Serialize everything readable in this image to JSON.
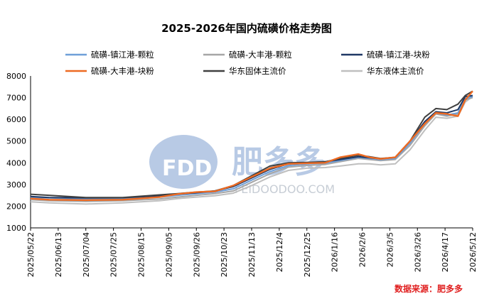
{
  "chart_data": {
    "type": "line",
    "title": "2025-2026年国内硫磺价格走势图",
    "xlabel": "",
    "ylabel": "",
    "ylim": [
      1000,
      8000
    ],
    "yticks": [
      1000,
      2000,
      3000,
      4000,
      5000,
      6000,
      7000,
      8000
    ],
    "x_tick_labels": [
      "2025/05/22",
      "2025/06/13",
      "2025/07/04",
      "2025/07/25",
      "2025/08/15",
      "2025/09/05",
      "2025/09/26",
      "2025/10/23",
      "2025/11/13",
      "2025/12/4",
      "2025/12/25",
      "2026/1/16",
      "2026/2/6",
      "2026/3/5",
      "2026/3/26",
      "2026/4/17",
      "2026/5/12"
    ],
    "x_index_range": [
      0,
      240
    ],
    "legend_position": "top",
    "grid": false,
    "series": [
      {
        "name": "硫磺-镇江港-颗粒",
        "color": "#6f9fd8",
        "x": [
          0,
          10,
          30,
          50,
          70,
          80,
          90,
          100,
          110,
          120,
          130,
          140,
          150,
          160,
          168,
          178,
          184,
          190,
          198,
          206,
          214,
          220,
          226,
          232,
          236,
          240
        ],
        "y": [
          2400,
          2380,
          2330,
          2350,
          2420,
          2500,
          2580,
          2650,
          2800,
          3200,
          3600,
          3870,
          3950,
          3980,
          4100,
          4250,
          4200,
          4150,
          4200,
          4900,
          5800,
          6300,
          6200,
          6300,
          6950,
          7050
        ]
      },
      {
        "name": "硫磺-大丰港-颗粒",
        "color": "#a6a6a6",
        "x": [
          0,
          10,
          30,
          50,
          70,
          80,
          90,
          100,
          110,
          120,
          130,
          140,
          150,
          160,
          168,
          178,
          184,
          190,
          198,
          206,
          214,
          220,
          226,
          232,
          236,
          240
        ],
        "y": [
          2300,
          2250,
          2220,
          2250,
          2330,
          2420,
          2500,
          2580,
          2700,
          3100,
          3500,
          3800,
          3880,
          3920,
          4050,
          4200,
          4150,
          4100,
          4150,
          4800,
          5700,
          6250,
          6150,
          6250,
          6900,
          7000
        ]
      },
      {
        "name": "硫磺-镇江港-块粉",
        "color": "#1f3864",
        "x": [
          0,
          10,
          30,
          50,
          70,
          80,
          90,
          100,
          110,
          120,
          130,
          140,
          150,
          160,
          168,
          178,
          184,
          190,
          198,
          206,
          214,
          220,
          226,
          232,
          236,
          240
        ],
        "y": [
          2450,
          2400,
          2380,
          2390,
          2480,
          2560,
          2620,
          2700,
          2900,
          3300,
          3700,
          3950,
          4000,
          4050,
          4150,
          4280,
          4230,
          4180,
          4250,
          5000,
          5900,
          6350,
          6300,
          6450,
          7050,
          7100
        ]
      },
      {
        "name": "硫磺-大丰港-块粉",
        "color": "#ed6a22",
        "x": [
          0,
          10,
          30,
          50,
          70,
          80,
          90,
          100,
          110,
          120,
          130,
          140,
          150,
          160,
          168,
          178,
          184,
          190,
          198,
          206,
          214,
          220,
          226,
          232,
          236,
          240
        ],
        "y": [
          2350,
          2300,
          2280,
          2300,
          2420,
          2560,
          2650,
          2680,
          2950,
          3350,
          3750,
          3950,
          3980,
          4000,
          4250,
          4400,
          4250,
          4180,
          4250,
          5000,
          5800,
          6300,
          6250,
          6150,
          6900,
          7300
        ]
      },
      {
        "name": "华东固体主流价",
        "color": "#404040",
        "x": [
          0,
          10,
          30,
          50,
          70,
          80,
          90,
          100,
          110,
          120,
          130,
          140,
          150,
          160,
          168,
          178,
          184,
          190,
          198,
          206,
          214,
          220,
          226,
          232,
          236,
          240
        ],
        "y": [
          2550,
          2500,
          2400,
          2400,
          2520,
          2580,
          2650,
          2700,
          2950,
          3400,
          3850,
          4000,
          4020,
          4050,
          4200,
          4350,
          4280,
          4200,
          4250,
          5000,
          6100,
          6500,
          6450,
          6700,
          7100,
          7300
        ]
      },
      {
        "name": "华东液体主流价",
        "color": "#bfbfbf",
        "x": [
          0,
          10,
          30,
          50,
          70,
          80,
          90,
          100,
          110,
          120,
          130,
          140,
          150,
          160,
          168,
          178,
          184,
          190,
          198,
          206,
          214,
          220,
          226,
          232,
          236,
          240
        ],
        "y": [
          2200,
          2150,
          2100,
          2150,
          2250,
          2350,
          2420,
          2480,
          2600,
          2950,
          3350,
          3650,
          3750,
          3780,
          3850,
          3950,
          3950,
          3900,
          3950,
          4600,
          5500,
          6100,
          6050,
          6150,
          6800,
          7050
        ]
      }
    ]
  },
  "watermark": {
    "logo_text": "FDD",
    "cn_text": "肥多多",
    "domain_text": "FEIDOODOO.COM"
  },
  "source_note": "数据来源：肥多多"
}
